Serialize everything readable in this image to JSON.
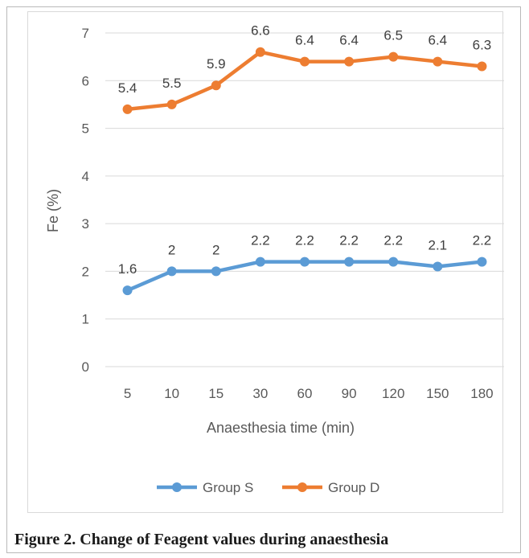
{
  "caption": "Figure 2. Change of Feagent values during anaesthesia",
  "chart_data": {
    "type": "line",
    "categories": [
      "5",
      "10",
      "15",
      "30",
      "60",
      "90",
      "120",
      "150",
      "180"
    ],
    "series": [
      {
        "name": "Group S",
        "color": "#5B9BD5",
        "values": [
          1.6,
          2,
          2,
          2.2,
          2.2,
          2.2,
          2.2,
          2.1,
          2.2
        ],
        "labels": [
          "1.6",
          "2",
          "2",
          "2.2",
          "2.2",
          "2.2",
          "2.2",
          "2.1",
          "2.2"
        ]
      },
      {
        "name": "Group D",
        "color": "#ED7D31",
        "values": [
          5.4,
          5.5,
          5.9,
          6.6,
          6.4,
          6.4,
          6.5,
          6.4,
          6.3
        ],
        "labels": [
          "5.4",
          "5.5",
          "5.9",
          "6.6",
          "6.4",
          "6.4",
          "6.5",
          "6.4",
          "6.3"
        ]
      }
    ],
    "xlabel": "Anaesthesia time (min)",
    "ylabel": "Fe (%)",
    "ylim": [
      0,
      7
    ],
    "yticks": [
      "0",
      "1",
      "2",
      "3",
      "4",
      "5",
      "6",
      "7"
    ],
    "grid": true,
    "legend_position": "bottom"
  }
}
